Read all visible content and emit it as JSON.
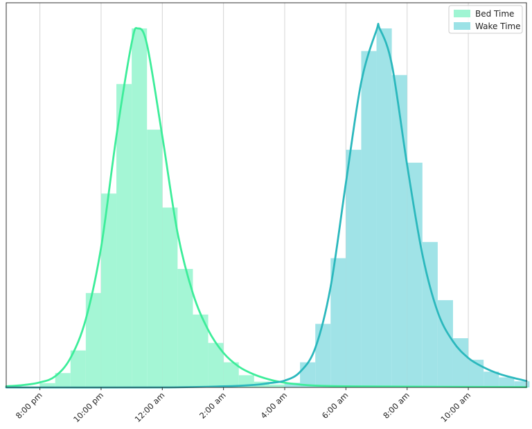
{
  "chart_data": {
    "type": "histogram_with_density",
    "title": "",
    "xlabel": "",
    "ylabel": "",
    "x_unit": "hour (clock time, continuing past midnight as 24+)",
    "xlim": [
      18.9,
      35.9
    ],
    "grid": {
      "x": true,
      "y": false
    },
    "legend": {
      "placement": "top-right",
      "entries": [
        "Bed Time",
        "Wake Time"
      ]
    },
    "x_ticks": [
      {
        "value": 20,
        "label": "8:00 pm"
      },
      {
        "value": 22,
        "label": "10:00 pm"
      },
      {
        "value": 24,
        "label": "12:00 am"
      },
      {
        "value": 26,
        "label": "2:00 am"
      },
      {
        "value": 28,
        "label": "4:00 am"
      },
      {
        "value": 30,
        "label": "6:00 am"
      },
      {
        "value": 32,
        "label": "8:00 am"
      },
      {
        "value": 34,
        "label": "10:00 am"
      }
    ],
    "y_scale": "relative frequency (peak = 1.0), axis unlabeled",
    "series": [
      {
        "name": "Bed Time",
        "bar_color": "#9ff5d3",
        "line_color": "#3ded9a",
        "bin_width": 0.5,
        "bins": [
          {
            "x": 20.25,
            "y": 0.012
          },
          {
            "x": 20.75,
            "y": 0.04
          },
          {
            "x": 21.25,
            "y": 0.103
          },
          {
            "x": 21.75,
            "y": 0.263
          },
          {
            "x": 22.25,
            "y": 0.54
          },
          {
            "x": 22.75,
            "y": 0.845
          },
          {
            "x": 23.25,
            "y": 1.0
          },
          {
            "x": 23.75,
            "y": 0.718
          },
          {
            "x": 24.25,
            "y": 0.501
          },
          {
            "x": 24.75,
            "y": 0.33
          },
          {
            "x": 25.25,
            "y": 0.203
          },
          {
            "x": 25.75,
            "y": 0.124
          },
          {
            "x": 26.25,
            "y": 0.07
          },
          {
            "x": 26.75,
            "y": 0.034
          },
          {
            "x": 27.25,
            "y": 0.016
          },
          {
            "x": 27.75,
            "y": 0.008
          }
        ],
        "density": [
          [
            18.9,
            0.003
          ],
          [
            19.5,
            0.007
          ],
          [
            20.0,
            0.014
          ],
          [
            20.5,
            0.031
          ],
          [
            21.0,
            0.082
          ],
          [
            21.5,
            0.19
          ],
          [
            22.0,
            0.39
          ],
          [
            22.5,
            0.7
          ],
          [
            23.0,
            0.96
          ],
          [
            23.2,
            1.0
          ],
          [
            23.5,
            0.955
          ],
          [
            24.0,
            0.7
          ],
          [
            24.5,
            0.43
          ],
          [
            25.0,
            0.262
          ],
          [
            25.5,
            0.16
          ],
          [
            26.0,
            0.096
          ],
          [
            26.5,
            0.058
          ],
          [
            27.0,
            0.036
          ],
          [
            27.5,
            0.022
          ],
          [
            28.0,
            0.013
          ],
          [
            28.5,
            0.008
          ],
          [
            29.0,
            0.005
          ],
          [
            30.0,
            0.003
          ],
          [
            32.0,
            0.002
          ],
          [
            35.9,
            0.001
          ]
        ]
      },
      {
        "name": "Wake Time",
        "bar_color": "#9be2e6",
        "line_color": "#2bb8bd",
        "bin_width": 0.5,
        "bins": [
          {
            "x": 28.25,
            "y": 0.013
          },
          {
            "x": 28.75,
            "y": 0.07
          },
          {
            "x": 29.25,
            "y": 0.177
          },
          {
            "x": 29.75,
            "y": 0.36
          },
          {
            "x": 30.25,
            "y": 0.662
          },
          {
            "x": 30.75,
            "y": 0.937
          },
          {
            "x": 31.25,
            "y": 1.0
          },
          {
            "x": 31.75,
            "y": 0.87
          },
          {
            "x": 32.25,
            "y": 0.626
          },
          {
            "x": 32.75,
            "y": 0.405
          },
          {
            "x": 33.25,
            "y": 0.243
          },
          {
            "x": 33.75,
            "y": 0.137
          },
          {
            "x": 34.25,
            "y": 0.077
          },
          {
            "x": 34.75,
            "y": 0.044
          },
          {
            "x": 35.25,
            "y": 0.028
          },
          {
            "x": 35.75,
            "y": 0.017
          }
        ],
        "density": [
          [
            18.9,
            0.0
          ],
          [
            24.0,
            0.0
          ],
          [
            26.0,
            0.003
          ],
          [
            27.0,
            0.007
          ],
          [
            27.5,
            0.012
          ],
          [
            28.0,
            0.019
          ],
          [
            28.5,
            0.043
          ],
          [
            29.0,
            0.11
          ],
          [
            29.5,
            0.28
          ],
          [
            30.0,
            0.57
          ],
          [
            30.5,
            0.85
          ],
          [
            31.0,
            0.995
          ],
          [
            31.1,
            1.0
          ],
          [
            31.5,
            0.9
          ],
          [
            32.0,
            0.62
          ],
          [
            32.5,
            0.37
          ],
          [
            33.0,
            0.21
          ],
          [
            33.5,
            0.128
          ],
          [
            34.0,
            0.082
          ],
          [
            34.5,
            0.056
          ],
          [
            35.0,
            0.038
          ],
          [
            35.5,
            0.026
          ],
          [
            35.9,
            0.018
          ]
        ]
      }
    ]
  }
}
